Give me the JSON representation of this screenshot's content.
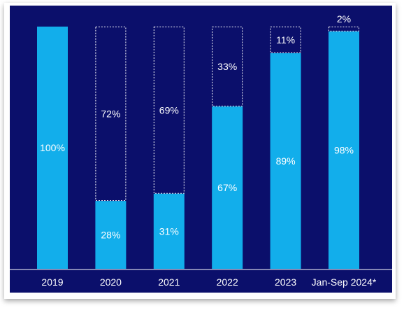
{
  "chart_data": {
    "type": "bar",
    "stacked": true,
    "categories": [
      "2019",
      "2020",
      "2021",
      "2022",
      "2023",
      "Jan-Sep 2024*"
    ],
    "series": [
      {
        "values": [
          100,
          28,
          31,
          67,
          89,
          98
        ],
        "labels": [
          "100%",
          "28%",
          "31%",
          "67%",
          "89%",
          "98%"
        ]
      },
      {
        "values": [
          0,
          72,
          69,
          33,
          11,
          2
        ],
        "labels": [
          "",
          "72%",
          "69%",
          "33%",
          "11%",
          "2%"
        ]
      }
    ],
    "ylim": [
      0,
      100
    ],
    "grid": false,
    "colors": {
      "background": "#0b0f6b",
      "filled": "#12aeeb",
      "remainder_border": "#ffffff",
      "text": "#ffffff",
      "baseline": "#ffffff"
    }
  }
}
